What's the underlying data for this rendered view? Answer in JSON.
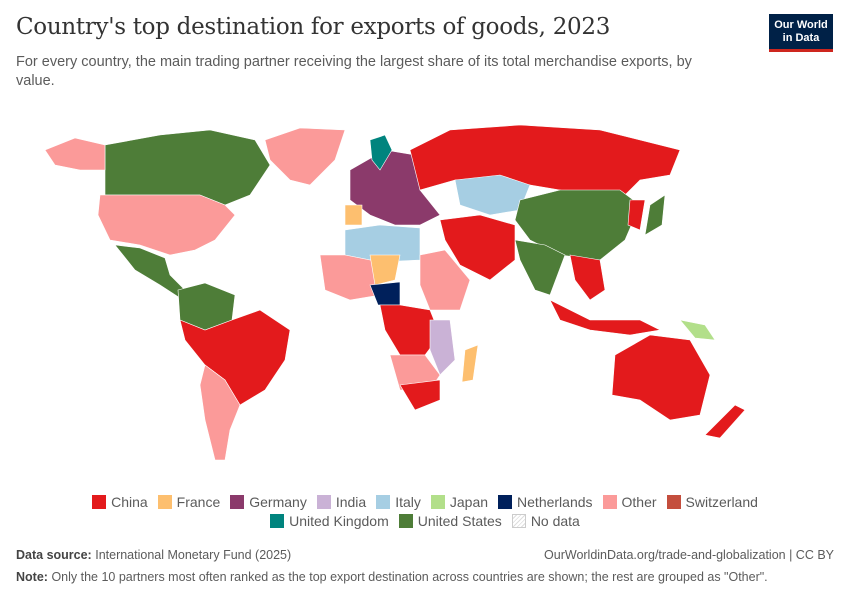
{
  "title": "Country's top destination for exports of goods, 2023",
  "subtitle": "For every country, the main trading partner receiving the largest share of its total merchandise exports, by value.",
  "logo": {
    "line1": "Our World",
    "line2": "in Data"
  },
  "legend": [
    {
      "label": "China",
      "color": "#e31a1c"
    },
    {
      "label": "France",
      "color": "#fdbf6f"
    },
    {
      "label": "Germany",
      "color": "#8b3a6b"
    },
    {
      "label": "India",
      "color": "#cab2d6"
    },
    {
      "label": "Italy",
      "color": "#a6cee3"
    },
    {
      "label": "Japan",
      "color": "#b2df8a"
    },
    {
      "label": "Netherlands",
      "color": "#00205b"
    },
    {
      "label": "Other",
      "color": "#fb9a99"
    },
    {
      "label": "Switzerland",
      "color": "#c44e3d"
    },
    {
      "label": "United Kingdom",
      "color": "#00847e"
    },
    {
      "label": "United States",
      "color": "#4e7d38"
    },
    {
      "label": "No data",
      "color": "#ffffff"
    }
  ],
  "footer": {
    "source_label": "Data source:",
    "source": "International Monetary Fund (2025)",
    "url": "OurWorldinData.org/trade-and-globalization | CC BY",
    "note_label": "Note:",
    "note": "Only the 10 partners most often ranked as the top export destination across countries are shown; the rest are grouped as \"Other\"."
  }
}
